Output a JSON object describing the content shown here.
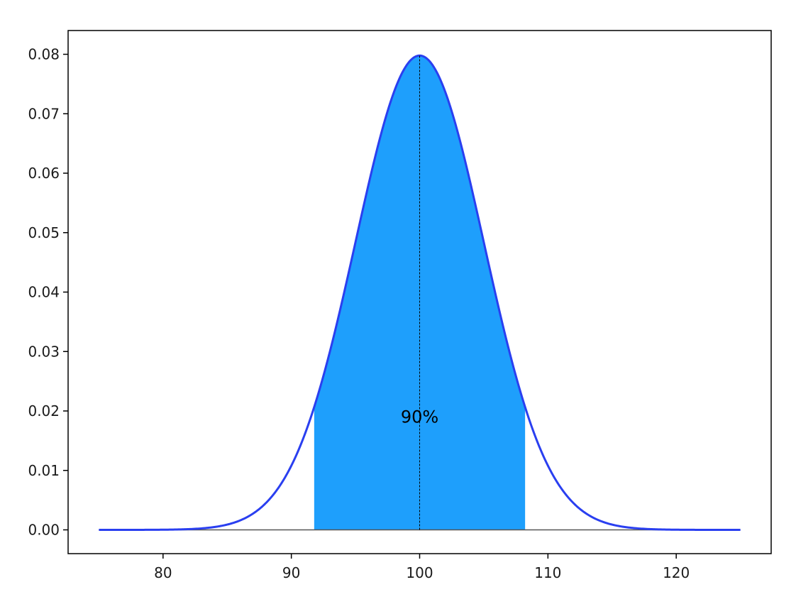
{
  "chart_data": {
    "type": "area",
    "distribution": "normal",
    "mean": 100,
    "std_dev": 5,
    "x_range": [
      75,
      125
    ],
    "xlim": [
      72.6,
      127.4
    ],
    "ylim": [
      -0.004,
      0.084
    ],
    "x_ticks": [
      80,
      90,
      100,
      110,
      120
    ],
    "x_tick_labels": [
      "80",
      "90",
      "100",
      "110",
      "120"
    ],
    "y_ticks": [
      0.0,
      0.01,
      0.02,
      0.03,
      0.04,
      0.05,
      0.06,
      0.07,
      0.08
    ],
    "y_tick_labels": [
      "0.00",
      "0.01",
      "0.02",
      "0.03",
      "0.04",
      "0.05",
      "0.06",
      "0.07",
      "0.08"
    ],
    "shaded_interval": [
      91.78,
      108.22
    ],
    "shaded_probability": 0.9,
    "annotation": {
      "text": "90%",
      "x": 100,
      "y": 0.019
    },
    "mean_line_x": 100,
    "baseline_y": 0,
    "title": "",
    "xlabel": "",
    "ylabel": "",
    "grid": false,
    "colors": {
      "curve": "#2a3ff0",
      "fill": "#1e9ffc",
      "mean_line": "#000000",
      "baseline": "#555555",
      "axes": "#000000"
    }
  }
}
